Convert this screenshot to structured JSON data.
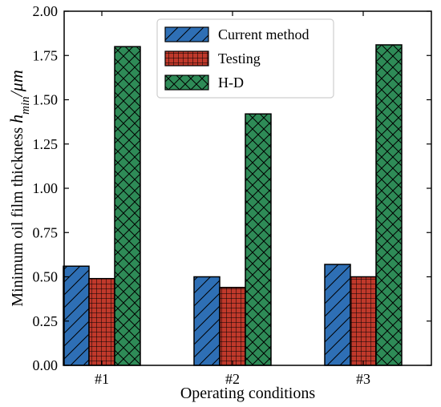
{
  "chart_data": {
    "type": "bar",
    "categories": [
      "#1",
      "#2",
      "#3"
    ],
    "series": [
      {
        "name": "Current method",
        "values": [
          0.56,
          0.5,
          0.57
        ],
        "color": "#2e6fb5",
        "pattern": "diagonal-hatch"
      },
      {
        "name": "Testing",
        "values": [
          0.49,
          0.44,
          0.5
        ],
        "color": "#c0392b",
        "pattern": "grid-hatch"
      },
      {
        "name": "H-D",
        "values": [
          1.8,
          1.42,
          1.81
        ],
        "color": "#2e8b57",
        "pattern": "crosshatch"
      }
    ],
    "xlabel": "Operating conditions",
    "ylabel_prefix": "Minimum oil film thickness ",
    "ylabel_symbol": "h",
    "ylabel_subscript": "min",
    "ylabel_unit": "/μm",
    "ylim": [
      0,
      2.0
    ],
    "yticks": [
      "0.00",
      "0.25",
      "0.50",
      "0.75",
      "1.00",
      "1.25",
      "1.50",
      "1.75",
      "2.00"
    ],
    "grid": false,
    "legend_position": "top-center"
  }
}
